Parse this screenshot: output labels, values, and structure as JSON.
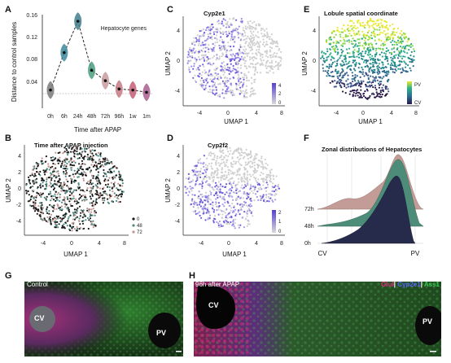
{
  "panels": {
    "A": {
      "label": "A",
      "ylabel": "Distance to control samples",
      "xlabel": "Time after APAP",
      "legend": "Hepatocyte genes",
      "yticks": [
        "0.04",
        "0.08",
        "0.12",
        "0.16"
      ]
    },
    "B": {
      "label": "B",
      "title": "Time after APAP injection",
      "xlabel": "UMAP 1",
      "ylabel": "UMAP 2",
      "xticks": [
        "-4",
        "0",
        "4",
        "8"
      ],
      "yticks": [
        "4",
        "2",
        "0",
        "-2",
        "-4"
      ],
      "legend": [
        "0",
        "48",
        "72"
      ]
    },
    "C": {
      "label": "C",
      "title": "Cyp2e1",
      "xlabel": "UMAP 1",
      "ylabel": "UMAP 2",
      "xticks": [
        "-4",
        "0",
        "4",
        "8"
      ],
      "yticks": [
        "4",
        "0",
        "-4"
      ],
      "scale": [
        "4",
        "2",
        "0"
      ]
    },
    "D": {
      "label": "D",
      "title": "Cyp2f2",
      "xlabel": "UMAP 1",
      "ylabel": "UMAP 2",
      "xticks": [
        "-4",
        "0",
        "4",
        "8"
      ],
      "yticks": [
        "4",
        "2",
        "0",
        "-2",
        "-4"
      ],
      "scale": [
        "2",
        "1",
        "0"
      ]
    },
    "E": {
      "label": "E",
      "title": "Lobule spatial coordinate",
      "xlabel": "UMAP 1",
      "ylabel": "UMAP 2",
      "xticks": [
        "-4",
        "0",
        "4",
        "8"
      ],
      "yticks": [
        "4",
        "0",
        "-4"
      ],
      "scale": [
        "PV",
        "CV"
      ]
    },
    "F": {
      "label": "F",
      "title": "Zonal distributions of Hepatocytes",
      "rows": [
        "72h",
        "48h",
        "0h"
      ],
      "xleft": "CV",
      "xright": "PV"
    },
    "G": {
      "label": "G",
      "caption": "Control",
      "cv": "CV",
      "pv": "PV"
    },
    "H": {
      "label": "H",
      "caption": "96h after APAP",
      "cv": "CV",
      "pv": "PV",
      "legend": {
        "a": "Glul",
        "sep1": "|",
        "b": "Cyp2e1",
        "sep2": "|",
        "c": "Ass1"
      }
    }
  },
  "chart_data": [
    {
      "panel": "A",
      "type": "line",
      "categories": [
        "0h",
        "6h",
        "24h",
        "48h",
        "72h",
        "96h",
        "1w",
        "1m"
      ],
      "values": [
        0.033,
        0.101,
        0.158,
        0.069,
        0.05,
        0.035,
        0.033,
        0.029
      ],
      "ylim": [
        0,
        0.17
      ],
      "dashed_reference": 0.033
    },
    {
      "panel": "F",
      "type": "area",
      "series": [
        {
          "name": "72h"
        },
        {
          "name": "48h"
        },
        {
          "name": "0h"
        }
      ]
    }
  ],
  "colors": {
    "A_points": [
      "#7a7a7a",
      "#3d8a9c",
      "#3f7e8c",
      "#4a9e80",
      "#c79a9d",
      "#c47b82",
      "#c45e77",
      "#a85f8e"
    ],
    "F_72h": "#c49c97",
    "F_48h": "#4d8c78",
    "F_0h": "#262a4b",
    "glul": "#e0297a",
    "cyp2e1": "#3f47c2",
    "ass1": "#2d9a3f"
  }
}
